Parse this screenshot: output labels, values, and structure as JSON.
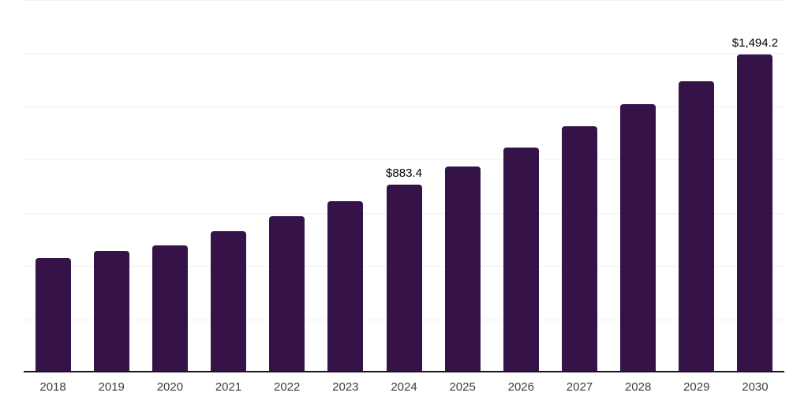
{
  "chart_data": {
    "type": "bar",
    "title": "",
    "xlabel": "",
    "ylabel": "",
    "categories": [
      "2018",
      "2019",
      "2020",
      "2021",
      "2022",
      "2023",
      "2024",
      "2025",
      "2026",
      "2027",
      "2028",
      "2029",
      "2030"
    ],
    "values": [
      537,
      571,
      597,
      663,
      734,
      804,
      883.4,
      966,
      1058,
      1155,
      1261,
      1370,
      1494.2
    ],
    "point_labels": [
      null,
      null,
      null,
      null,
      null,
      null,
      "$883.4",
      null,
      null,
      null,
      null,
      null,
      "$1,494.2"
    ],
    "ylim": [
      0,
      1750
    ],
    "grid_step": 250,
    "grid": true,
    "legend": false,
    "y_axis_labels_visible": false,
    "colors": {
      "bar": "#351349",
      "axis_line": "#1a1125",
      "gridline": "#f1f1f4",
      "tick_label": "#3d3d3d",
      "data_label": "#000000",
      "background": "#ffffff"
    }
  }
}
